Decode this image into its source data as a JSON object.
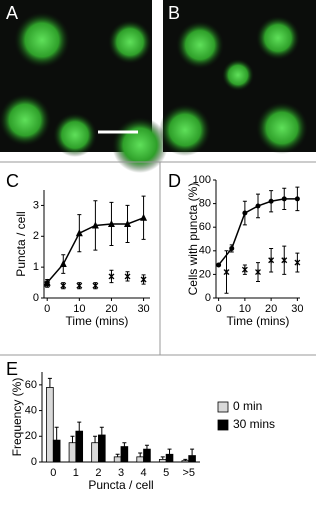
{
  "images": [
    "A",
    "B"
  ],
  "chart_data": [
    {
      "type": "scatter",
      "panel": "C",
      "xlabel": "Time (mins)",
      "ylabel": "Puncta / cell",
      "xlim": [
        -1,
        32
      ],
      "ylim": [
        0,
        3.5
      ],
      "xticks": [
        0,
        10,
        20,
        30
      ],
      "yticks": [
        0,
        1,
        2,
        3
      ],
      "series": [
        {
          "marker": "triangle",
          "line": true,
          "color": "#000000",
          "x": [
            0,
            5,
            10,
            15,
            20,
            25,
            30
          ],
          "values": [
            0.5,
            1.1,
            2.1,
            2.35,
            2.4,
            2.4,
            2.6
          ],
          "errors": [
            0.1,
            0.3,
            0.6,
            0.8,
            0.7,
            0.6,
            0.7
          ]
        },
        {
          "marker": "star",
          "line": false,
          "color": "#000000",
          "x": [
            0,
            5,
            10,
            15,
            20,
            25,
            30
          ],
          "values": [
            0.45,
            0.4,
            0.4,
            0.4,
            0.7,
            0.7,
            0.6
          ],
          "errors": [
            0.1,
            0.1,
            0.1,
            0.1,
            0.2,
            0.15,
            0.15
          ]
        }
      ]
    },
    {
      "type": "scatter",
      "panel": "D",
      "xlabel": "Time (mins)",
      "ylabel": "Cells with puncta (%)",
      "xlim": [
        -1,
        31
      ],
      "ylim": [
        0,
        100
      ],
      "xticks": [
        0,
        10,
        20,
        30
      ],
      "yticks": [
        0,
        20,
        40,
        60,
        80,
        100
      ],
      "series": [
        {
          "marker": "dot",
          "line": true,
          "color": "#000000",
          "x": [
            0,
            5,
            10,
            15,
            20,
            25,
            30
          ],
          "values": [
            28,
            42,
            72,
            78,
            82,
            84,
            84
          ],
          "errors": [
            0,
            3,
            10,
            10,
            9,
            9,
            10
          ]
        },
        {
          "marker": "star",
          "line": false,
          "color": "#000000",
          "x": [
            3,
            10,
            15,
            20,
            25,
            30
          ],
          "values": [
            22,
            24,
            22,
            32,
            32,
            30
          ],
          "errors": [
            18,
            4,
            8,
            10,
            12,
            8
          ]
        }
      ]
    },
    {
      "type": "bar",
      "panel": "E",
      "xlabel": "Puncta / cell",
      "ylabel": "Frequency (%)",
      "ylim": [
        0,
        70
      ],
      "yticks": [
        0,
        20,
        40,
        60
      ],
      "categories": [
        "0",
        "1",
        "2",
        "3",
        "4",
        "5",
        ">5"
      ],
      "legend": "right",
      "series": [
        {
          "name": "0 min",
          "color": "#d9d9d9",
          "values": [
            58,
            15,
            15,
            4,
            4,
            2,
            1
          ],
          "errors": [
            7,
            5,
            5,
            2,
            3,
            2,
            1
          ]
        },
        {
          "name": "30 mins",
          "color": "#000000",
          "values": [
            17,
            24,
            21,
            12,
            10,
            6,
            5
          ],
          "errors": [
            10,
            7,
            6,
            3,
            3,
            4,
            5
          ]
        }
      ]
    }
  ]
}
